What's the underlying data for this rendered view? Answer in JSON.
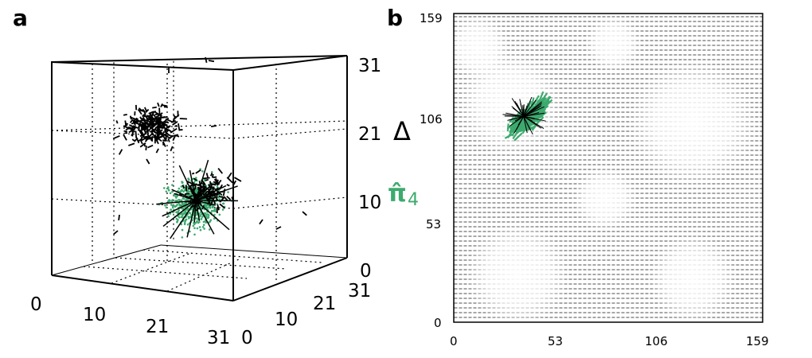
{
  "panels": {
    "a_label": "a",
    "b_label": "b"
  },
  "legend": {
    "delta_symbol": "Δ",
    "pi_symbol": "π̂",
    "pi_subscript": "4",
    "pi_color": "#3daa6e",
    "delta_color": "#000000"
  },
  "chart_data": [
    {
      "type": "scatter",
      "title": "",
      "panel": "a",
      "dimensions": 3,
      "axes": {
        "x": {
          "range": [
            0,
            31
          ],
          "ticks": [
            "0",
            "10",
            "21",
            "31"
          ]
        },
        "y": {
          "range": [
            0,
            31
          ],
          "ticks": [
            "0",
            "10",
            "21",
            "31"
          ]
        },
        "z": {
          "range": [
            0,
            31
          ],
          "ticks": [
            "0",
            "10",
            "21",
            "31"
          ]
        }
      },
      "grid": true,
      "series": [
        {
          "name": "Δ",
          "color": "#000000",
          "marker": "arrow"
        },
        {
          "name": "π̂4",
          "color": "#3daa6e",
          "marker": "dot"
        }
      ]
    },
    {
      "type": "scatter",
      "title": "",
      "panel": "b",
      "dimensions": 2,
      "axes": {
        "x": {
          "range": [
            0,
            159
          ],
          "ticks": [
            "0",
            "53",
            "106",
            "159"
          ]
        },
        "y": {
          "range": [
            0,
            159
          ],
          "ticks": [
            "0",
            "53",
            "106",
            "159"
          ]
        }
      },
      "grid": false,
      "series": [
        {
          "name": "Δ",
          "color": "#000000",
          "marker": "arrow-field"
        },
        {
          "name": "π̂4",
          "color": "#3daa6e",
          "marker": "arrow",
          "cluster_center": [
            38,
            104
          ]
        }
      ]
    }
  ]
}
